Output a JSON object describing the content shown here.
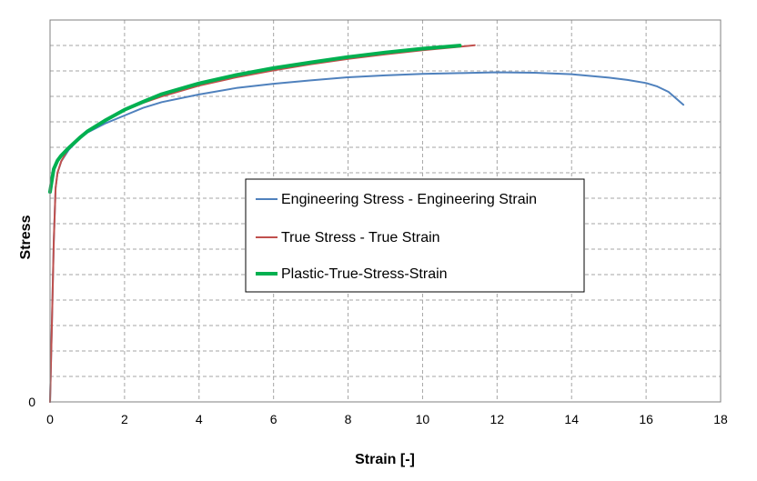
{
  "chart_data": {
    "type": "line",
    "title": "",
    "xlabel": "Strain [-]",
    "ylabel": "Stress",
    "xlim": [
      0,
      18
    ],
    "ylim": [
      0,
      100
    ],
    "xticks": [
      0,
      2,
      4,
      6,
      8,
      10,
      12,
      14,
      16,
      18
    ],
    "yticks": [
      0
    ],
    "y_gridlines": 15,
    "grid": true,
    "legend_position": "center-right",
    "series": [
      {
        "name": "Engineering Stress - Engineering Strain",
        "color": "#4f81bd",
        "points": [
          [
            0,
            0
          ],
          [
            0.05,
            20
          ],
          [
            0.1,
            42
          ],
          [
            0.15,
            56
          ],
          [
            0.2,
            60
          ],
          [
            0.3,
            63
          ],
          [
            0.5,
            66
          ],
          [
            0.8,
            69
          ],
          [
            1.0,
            70.5
          ],
          [
            1.5,
            73
          ],
          [
            2.0,
            75
          ],
          [
            2.5,
            77
          ],
          [
            3.0,
            78.5
          ],
          [
            4.0,
            80.5
          ],
          [
            5.0,
            82.2
          ],
          [
            6.0,
            83.3
          ],
          [
            7.0,
            84.2
          ],
          [
            8.0,
            85
          ],
          [
            9.0,
            85.5
          ],
          [
            10.0,
            85.9
          ],
          [
            11.0,
            86.1
          ],
          [
            12.0,
            86.3
          ],
          [
            13.0,
            86.2
          ],
          [
            14.0,
            85.8
          ],
          [
            15.0,
            84.9
          ],
          [
            15.5,
            84.3
          ],
          [
            16.0,
            83.5
          ],
          [
            16.3,
            82.6
          ],
          [
            16.6,
            81.2
          ],
          [
            16.8,
            79.5
          ],
          [
            17.0,
            77.8
          ]
        ]
      },
      {
        "name": "True Stress - True Strain",
        "color": "#c0504d",
        "points": [
          [
            0,
            0
          ],
          [
            0.05,
            20
          ],
          [
            0.1,
            42
          ],
          [
            0.15,
            56
          ],
          [
            0.2,
            60
          ],
          [
            0.3,
            63
          ],
          [
            0.5,
            66.5
          ],
          [
            0.8,
            69.5
          ],
          [
            1.0,
            71
          ],
          [
            1.5,
            74
          ],
          [
            2.0,
            76.3
          ],
          [
            2.5,
            78.3
          ],
          [
            3.0,
            80
          ],
          [
            4.0,
            82.8
          ],
          [
            5.0,
            85
          ],
          [
            6.0,
            86.8
          ],
          [
            7.0,
            88.4
          ],
          [
            8.0,
            89.8
          ],
          [
            9.0,
            91
          ],
          [
            10.0,
            92.1
          ],
          [
            11.0,
            93
          ],
          [
            11.4,
            93.4
          ]
        ]
      },
      {
        "name": "Plastic-True-Stress-Strain",
        "color": "#00b050",
        "points": [
          [
            0,
            55
          ],
          [
            0.05,
            58
          ],
          [
            0.1,
            61
          ],
          [
            0.2,
            63.2
          ],
          [
            0.3,
            64.5
          ],
          [
            0.5,
            66.5
          ],
          [
            0.8,
            69.2
          ],
          [
            1.0,
            70.8
          ],
          [
            1.5,
            73.8
          ],
          [
            2.0,
            76.5
          ],
          [
            2.5,
            78.6
          ],
          [
            3.0,
            80.6
          ],
          [
            4.0,
            83.4
          ],
          [
            5.0,
            85.6
          ],
          [
            6.0,
            87.4
          ],
          [
            7.0,
            88.9
          ],
          [
            8.0,
            90.3
          ],
          [
            9.0,
            91.5
          ],
          [
            10.0,
            92.5
          ],
          [
            11.0,
            93.3
          ]
        ]
      }
    ]
  }
}
